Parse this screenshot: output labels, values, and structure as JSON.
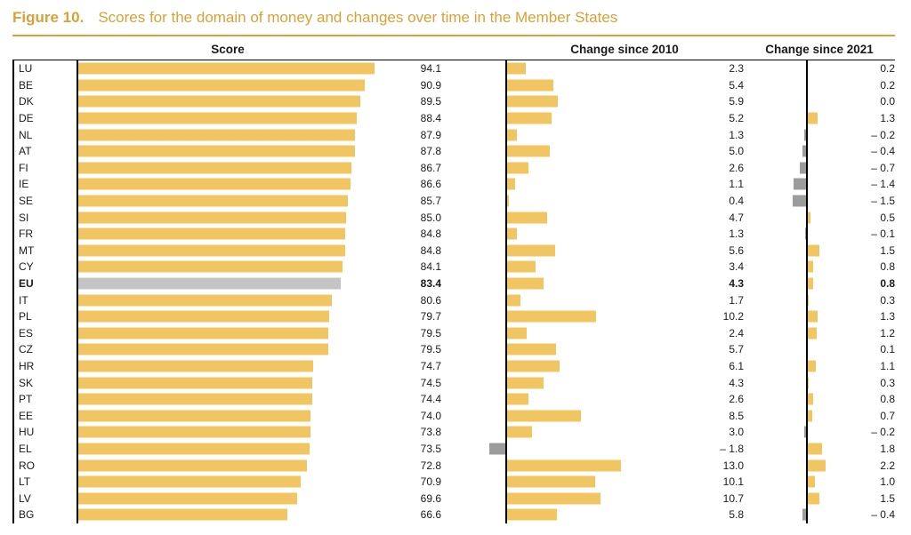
{
  "figure": {
    "label": "Figure 10.",
    "title": "Scores for the domain of money and changes over time in the Member States"
  },
  "headers": {
    "score": "Score",
    "change_2010": "Change since 2010",
    "change_2021": "Change since 2021"
  },
  "colors": {
    "title_gold": "#D9A136",
    "bar_gold": "#F1C662",
    "bar_eu_gray": "#C4C4C4",
    "bar_negative_gray": "#9C9C9C",
    "axis_black": "#000000"
  },
  "chart_data": {
    "type": "bar",
    "orientation": "horizontal",
    "title": "Scores for the domain of money and changes over time in the Member States",
    "highlight_row": "EU",
    "panels": [
      {
        "name": "Score",
        "xlim": [
          0,
          100
        ]
      },
      {
        "name": "Change since 2010",
        "xlim": [
          -2,
          14
        ]
      },
      {
        "name": "Change since 2021",
        "xlim": [
          -2,
          3
        ]
      }
    ],
    "legend": "none",
    "grid": "off",
    "rows": [
      {
        "country": "LU",
        "score": 94.1,
        "change_2010": 2.3,
        "change_2021": 0.2
      },
      {
        "country": "BE",
        "score": 90.9,
        "change_2010": 5.4,
        "change_2021": 0.2
      },
      {
        "country": "DK",
        "score": 89.5,
        "change_2010": 5.9,
        "change_2021": 0.0
      },
      {
        "country": "DE",
        "score": 88.4,
        "change_2010": 5.2,
        "change_2021": 1.3
      },
      {
        "country": "NL",
        "score": 87.9,
        "change_2010": 1.3,
        "change_2021": -0.2
      },
      {
        "country": "AT",
        "score": 87.8,
        "change_2010": 5.0,
        "change_2021": -0.4
      },
      {
        "country": "FI",
        "score": 86.7,
        "change_2010": 2.6,
        "change_2021": -0.7
      },
      {
        "country": "IE",
        "score": 86.6,
        "change_2010": 1.1,
        "change_2021": -1.4
      },
      {
        "country": "SE",
        "score": 85.7,
        "change_2010": 0.4,
        "change_2021": -1.5
      },
      {
        "country": "SI",
        "score": 85.0,
        "change_2010": 4.7,
        "change_2021": 0.5
      },
      {
        "country": "FR",
        "score": 84.8,
        "change_2010": 1.3,
        "change_2021": -0.1
      },
      {
        "country": "MT",
        "score": 84.8,
        "change_2010": 5.6,
        "change_2021": 1.5
      },
      {
        "country": "CY",
        "score": 84.1,
        "change_2010": 3.4,
        "change_2021": 0.8
      },
      {
        "country": "EU",
        "score": 83.4,
        "change_2010": 4.3,
        "change_2021": 0.8
      },
      {
        "country": "IT",
        "score": 80.6,
        "change_2010": 1.7,
        "change_2021": 0.3
      },
      {
        "country": "PL",
        "score": 79.7,
        "change_2010": 10.2,
        "change_2021": 1.3
      },
      {
        "country": "ES",
        "score": 79.5,
        "change_2010": 2.4,
        "change_2021": 1.2
      },
      {
        "country": "CZ",
        "score": 79.5,
        "change_2010": 5.7,
        "change_2021": 0.1
      },
      {
        "country": "HR",
        "score": 74.7,
        "change_2010": 6.1,
        "change_2021": 1.1
      },
      {
        "country": "SK",
        "score": 74.5,
        "change_2010": 4.3,
        "change_2021": 0.3
      },
      {
        "country": "PT",
        "score": 74.4,
        "change_2010": 2.6,
        "change_2021": 0.8
      },
      {
        "country": "EE",
        "score": 74.0,
        "change_2010": 8.5,
        "change_2021": 0.7
      },
      {
        "country": "HU",
        "score": 73.8,
        "change_2010": 3.0,
        "change_2021": -0.2
      },
      {
        "country": "EL",
        "score": 73.5,
        "change_2010": -1.8,
        "change_2021": 1.8
      },
      {
        "country": "RO",
        "score": 72.8,
        "change_2010": 13.0,
        "change_2021": 2.2
      },
      {
        "country": "LT",
        "score": 70.9,
        "change_2010": 10.1,
        "change_2021": 1.0
      },
      {
        "country": "LV",
        "score": 69.6,
        "change_2010": 10.7,
        "change_2021": 1.5
      },
      {
        "country": "BG",
        "score": 66.6,
        "change_2010": 5.8,
        "change_2021": -0.4
      }
    ]
  }
}
